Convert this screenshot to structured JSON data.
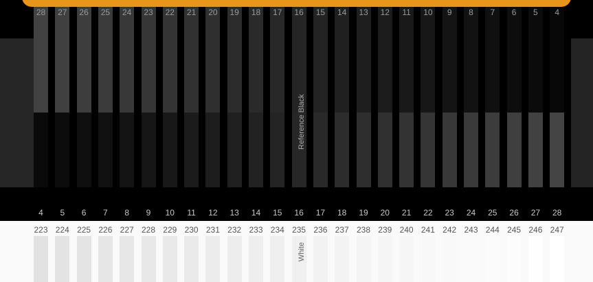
{
  "reference_black_label": "Reference Black",
  "white_label": "White",
  "top_numbers": [
    "28",
    "27",
    "26",
    "25",
    "24",
    "23",
    "22",
    "21",
    "20",
    "19",
    "18",
    "17",
    "16",
    "15",
    "14",
    "13",
    "12",
    "11",
    "10",
    "9",
    "8",
    "7",
    "6",
    "5",
    "4"
  ],
  "bottom_numbers": [
    "4",
    "5",
    "6",
    "7",
    "8",
    "9",
    "10",
    "11",
    "12",
    "13",
    "14",
    "15",
    "16",
    "17",
    "18",
    "19",
    "20",
    "21",
    "22",
    "23",
    "24",
    "25",
    "26",
    "27",
    "28"
  ],
  "white_numbers": [
    "223",
    "224",
    "225",
    "226",
    "227",
    "228",
    "229",
    "230",
    "231",
    "232",
    "233",
    "234",
    "235",
    "236",
    "237",
    "238",
    "239",
    "240",
    "241",
    "242",
    "243",
    "244",
    "245",
    "246",
    "247"
  ],
  "colors": {
    "accent": "#e8951c",
    "reference_black": "#101010"
  }
}
